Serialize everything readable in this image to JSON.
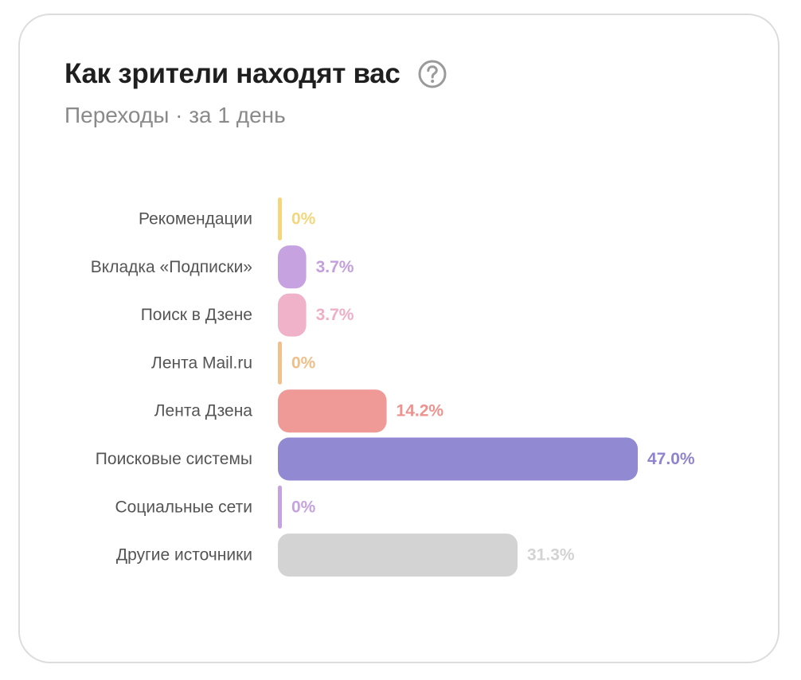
{
  "card": {
    "title": "Как зрители находят вас",
    "subtitle": "Переходы · за 1 день",
    "help_icon": "question-circle-icon"
  },
  "colors": {
    "title": "#1f1f1f",
    "subtitle": "#8a8a8a",
    "label": "#555555",
    "border": "#dcdcdc",
    "icon": "#9a9a9a"
  },
  "chart_data": {
    "type": "bar",
    "orientation": "horizontal",
    "title": "Как зрители находят вас",
    "subtitle": "Переходы · за 1 день",
    "xlim": [
      0,
      47.0
    ],
    "grid": false,
    "legend": "none",
    "categories": [
      "Рекомендации",
      "Вкладка «Подписки»",
      "Поиск в Дзене",
      "Лента Mail.ru",
      "Лента Дзена",
      "Поисковые системы",
      "Социальные сети",
      "Другие источники"
    ],
    "values": [
      0,
      3.7,
      3.7,
      0,
      14.2,
      47.0,
      0,
      31.3
    ],
    "value_labels": [
      "0%",
      "3.7%",
      "3.7%",
      "0%",
      "14.2%",
      "47.0%",
      "0%",
      "31.3%"
    ],
    "bar_colors": [
      "#f5d67a",
      "#c6a2e0",
      "#efb2c8",
      "#f1c18b",
      "#ef9a96",
      "#9289d3",
      "#c6a2e0",
      "#d3d3d3"
    ],
    "label_colors": [
      "#f3d67e",
      "#c39fdc",
      "#eeafc6",
      "#efbf8a",
      "#ec938f",
      "#8f84cf",
      "#c6a2e0",
      "#d3d3d3"
    ]
  }
}
